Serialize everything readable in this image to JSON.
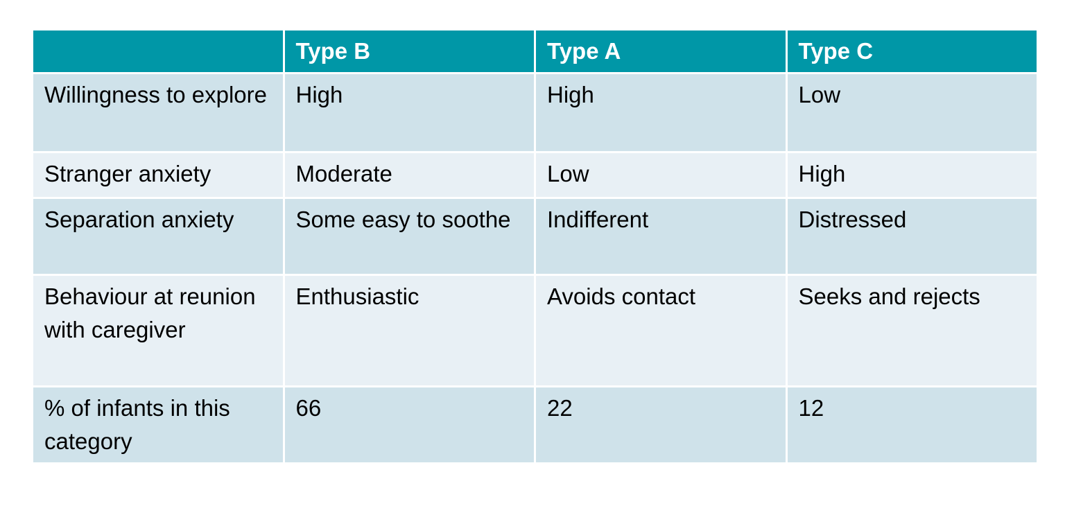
{
  "table": {
    "columns": [
      "Type B",
      "Type A",
      "Type C"
    ],
    "rows": [
      {
        "label": "Willingness to explore",
        "cells": [
          "High",
          "High",
          "Low"
        ]
      },
      {
        "label": "Stranger anxiety",
        "cells": [
          "Moderate",
          "Low",
          "High"
        ]
      },
      {
        "label": "Separation anxiety",
        "cells": [
          "Some easy to soothe",
          "Indifferent",
          "Distressed"
        ]
      },
      {
        "label": "Behaviour at reunion with caregiver",
        "cells": [
          "Enthusiastic",
          "Avoids contact",
          "Seeks and rejects"
        ]
      },
      {
        "label": "% of infants in this category",
        "cells": [
          66,
          22,
          12
        ]
      }
    ]
  }
}
